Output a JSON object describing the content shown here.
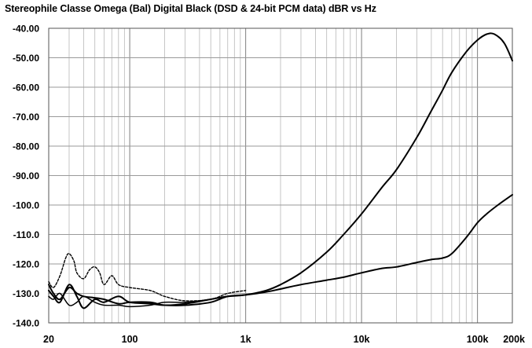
{
  "chart_data": {
    "type": "line",
    "title": "Stereophile Classe Omega (Bal) Digital Black (DSD & 24-bit PCM data)  dBR vs Hz",
    "xlabel": "",
    "ylabel": "",
    "xscale": "log",
    "xlim": [
      20,
      200000
    ],
    "ylim": [
      -140,
      -40
    ],
    "grid": true,
    "legend": "none",
    "y_ticks": [
      "-40.00",
      "-50.00",
      "-60.00",
      "-70.00",
      "-80.00",
      "-90.00",
      "-100.0",
      "-110.0",
      "-120.0",
      "-130.0",
      "-140.0"
    ],
    "x_ticks": [
      {
        "value": 20,
        "label": "20"
      },
      {
        "value": 100,
        "label": "100"
      },
      {
        "value": 1000,
        "label": "1k"
      },
      {
        "value": 10000,
        "label": "10k"
      },
      {
        "value": 100000,
        "label": "100k"
      },
      {
        "value": 200000,
        "label": "200k"
      }
    ],
    "series": [
      {
        "style": "solid",
        "color": "#000000",
        "x": [
          20,
          22,
          25,
          30,
          35,
          40,
          50,
          60,
          80,
          100,
          150,
          200,
          300,
          500,
          700,
          1000,
          1500,
          2000,
          3000,
          5000,
          7000,
          10000,
          15000,
          20000,
          30000,
          40000,
          50000,
          60000,
          80000,
          100000,
          120000,
          140000,
          170000,
          200000
        ],
        "y": [
          -127,
          -130,
          -132,
          -128,
          -130,
          -131,
          -131.5,
          -132,
          -133.5,
          -133,
          -133,
          -134,
          -133.5,
          -132,
          -131,
          -130.5,
          -129,
          -127,
          -123,
          -116,
          -110,
          -103,
          -94,
          -88,
          -77,
          -68,
          -61,
          -55,
          -48,
          -44,
          -42,
          -42,
          -45,
          -51
        ]
      },
      {
        "style": "solid",
        "color": "#000000",
        "x": [
          20,
          22,
          25,
          30,
          35,
          40,
          50,
          60,
          80,
          100,
          150,
          200,
          300,
          500,
          700,
          1000,
          1500,
          2000,
          3000,
          5000,
          7000,
          10000,
          15000,
          20000,
          30000,
          40000,
          50000,
          60000,
          80000,
          100000,
          120000,
          150000,
          200000
        ],
        "y": [
          -129,
          -131,
          -133,
          -127,
          -131,
          -135,
          -132,
          -133,
          -131,
          -133,
          -133.5,
          -134,
          -134,
          -133,
          -131,
          -130.5,
          -129.5,
          -128.5,
          -127,
          -125.5,
          -124.5,
          -123,
          -121.5,
          -121,
          -119.5,
          -118.5,
          -118,
          -116.5,
          -111,
          -106,
          -103,
          -100,
          -96.5
        ]
      },
      {
        "style": "dashed",
        "color": "#000000",
        "x": [
          20,
          22,
          25,
          28,
          30,
          33,
          35,
          40,
          45,
          50,
          55,
          60,
          70,
          80,
          100,
          150,
          200,
          300,
          500,
          700,
          1000
        ],
        "y": [
          -126,
          -128,
          -124,
          -118,
          -116.5,
          -119,
          -123,
          -125,
          -122,
          -121,
          -123,
          -127,
          -124,
          -127,
          -128,
          -129,
          -131,
          -132.5,
          -132,
          -130,
          -129
        ]
      },
      {
        "style": "solid",
        "color": "#000000",
        "x": [
          20,
          22,
          25,
          30,
          35,
          40,
          50,
          60,
          80,
          100,
          150,
          200,
          300,
          500,
          700,
          1000
        ],
        "y": [
          -131,
          -132,
          -130,
          -134,
          -133,
          -131,
          -133,
          -134,
          -134,
          -134.5,
          -134,
          -133,
          -133,
          -132,
          -131,
          -130.5
        ]
      }
    ]
  }
}
